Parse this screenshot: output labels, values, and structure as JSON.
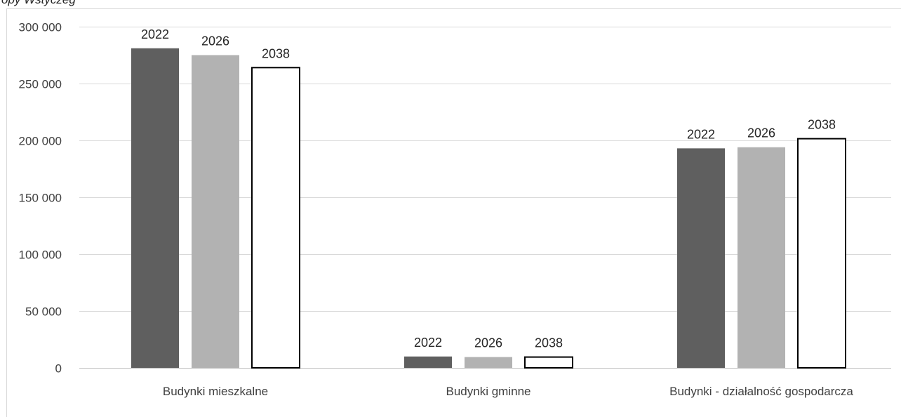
{
  "chart_data": {
    "type": "bar",
    "title": "",
    "xlabel": "",
    "ylabel": "",
    "top_text_fragment": "opy Wstyczeg",
    "categories": [
      "Budynki mieszkalne",
      "Budynki gminne",
      "Budynki - działalność gospodarcza"
    ],
    "series": [
      {
        "name": "2022",
        "values": [
          281000,
          10000,
          193000
        ],
        "color": "#5f5f5f"
      },
      {
        "name": "2026",
        "values": [
          275000,
          9500,
          194000
        ],
        "color": "#b2b2b2"
      },
      {
        "name": "2038",
        "values": [
          264000,
          9500,
          201500
        ],
        "color": "#ffffff"
      }
    ],
    "data_labels": "series name above each bar",
    "ylim": [
      0,
      300000
    ],
    "yticks": [
      0,
      50000,
      100000,
      150000,
      200000,
      250000,
      300000
    ],
    "ytick_labels": [
      "0",
      "50 000",
      "100 000",
      "150 000",
      "200 000",
      "250 000",
      "300 000"
    ],
    "grid": true,
    "legend": "none"
  }
}
